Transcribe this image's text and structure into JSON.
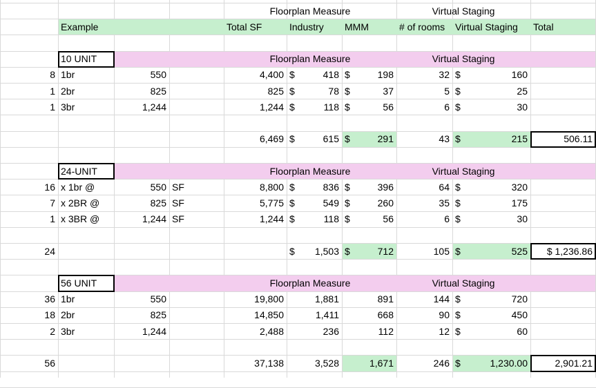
{
  "header": {
    "fp_measure": "Floorplan Measure",
    "virtual_staging": "Virtual Staging",
    "example": "Example",
    "total_sf": "Total SF",
    "industry": "Industry",
    "mmm": "MMM",
    "num_rooms": "# of rooms",
    "vs": "Virtual Staging",
    "total": "Total"
  },
  "sections": [
    {
      "title": "10 UNIT",
      "fp_label": "Floorplan Measure",
      "vs_label": "Virtual Staging",
      "rows": [
        {
          "count": "8",
          "type": "1br",
          "sf": "550",
          "sfu": "",
          "totsf": "4,400",
          "ind_d": "$",
          "ind": "418",
          "mmm_d": "$",
          "mmm": "198",
          "rooms": "32",
          "vs_d": "$",
          "vs": "160"
        },
        {
          "count": "1",
          "type": "2br",
          "sf": "825",
          "sfu": "",
          "totsf": "825",
          "ind_d": "$",
          "ind": "78",
          "mmm_d": "$",
          "mmm": "37",
          "rooms": "5",
          "vs_d": "$",
          "vs": "25"
        },
        {
          "count": "1",
          "type": "3br",
          "sf": "1,244",
          "sfu": "",
          "totsf": "1,244",
          "ind_d": "$",
          "ind": "118",
          "mmm_d": "$",
          "mmm": "56",
          "rooms": "6",
          "vs_d": "$",
          "vs": "30"
        }
      ],
      "total": {
        "count": "",
        "totsf": "6,469",
        "ind_d": "$",
        "ind": "615",
        "mmm_d": "$",
        "mmm": "291",
        "rooms": "43",
        "vs_d": "$",
        "vs": "215",
        "grand": "506.11"
      }
    },
    {
      "title": "24-UNIT",
      "fp_label": "Floorplan Measure",
      "vs_label": "Virtual Staging",
      "rows": [
        {
          "count": "16",
          "type": "x 1br @",
          "sf": "550",
          "sfu": "SF",
          "totsf": "8,800",
          "ind_d": "$",
          "ind": "836",
          "mmm_d": "$",
          "mmm": "396",
          "rooms": "64",
          "vs_d": "$",
          "vs": "320"
        },
        {
          "count": "7",
          "type": "x 2BR @",
          "sf": "825",
          "sfu": "SF",
          "totsf": "5,775",
          "ind_d": "$",
          "ind": "549",
          "mmm_d": "$",
          "mmm": "260",
          "rooms": "35",
          "vs_d": "$",
          "vs": "175"
        },
        {
          "count": "1",
          "type": "x 3BR @",
          "sf": "1,244",
          "sfu": "SF",
          "totsf": "1,244",
          "ind_d": "$",
          "ind": "118",
          "mmm_d": "$",
          "mmm": "56",
          "rooms": "6",
          "vs_d": "$",
          "vs": "30"
        }
      ],
      "total": {
        "count": "24",
        "totsf": "",
        "ind_d": "$",
        "ind": "1,503",
        "mmm_d": "$",
        "mmm": "712",
        "rooms": "105",
        "vs_d": "$",
        "vs": "525",
        "grand": "$ 1,236.86"
      }
    },
    {
      "title": "56 UNIT",
      "fp_label": "Floorplan Measure",
      "vs_label": "Virtual Staging",
      "rows": [
        {
          "count": "36",
          "type": "1br",
          "sf": "550",
          "sfu": "",
          "totsf": "19,800",
          "ind_d": "",
          "ind": "1,881",
          "mmm_d": "",
          "mmm": "891",
          "rooms": "144",
          "vs_d": "$",
          "vs": "720"
        },
        {
          "count": "18",
          "type": "2br",
          "sf": "825",
          "sfu": "",
          "totsf": "14,850",
          "ind_d": "",
          "ind": "1,411",
          "mmm_d": "",
          "mmm": "668",
          "rooms": "90",
          "vs_d": "$",
          "vs": "450"
        },
        {
          "count": "2",
          "type": "3br",
          "sf": "1,244",
          "sfu": "",
          "totsf": "2,488",
          "ind_d": "",
          "ind": "236",
          "mmm_d": "",
          "mmm": "112",
          "rooms": "12",
          "vs_d": "$",
          "vs": "60"
        }
      ],
      "total": {
        "count": "56",
        "totsf": "37,138",
        "ind_d": "",
        "ind": "3,528",
        "mmm_d": "",
        "mmm": "1,671",
        "rooms": "246",
        "vs_d": "$",
        "vs": "1,230.00",
        "grand": "2,901.21"
      }
    }
  ]
}
